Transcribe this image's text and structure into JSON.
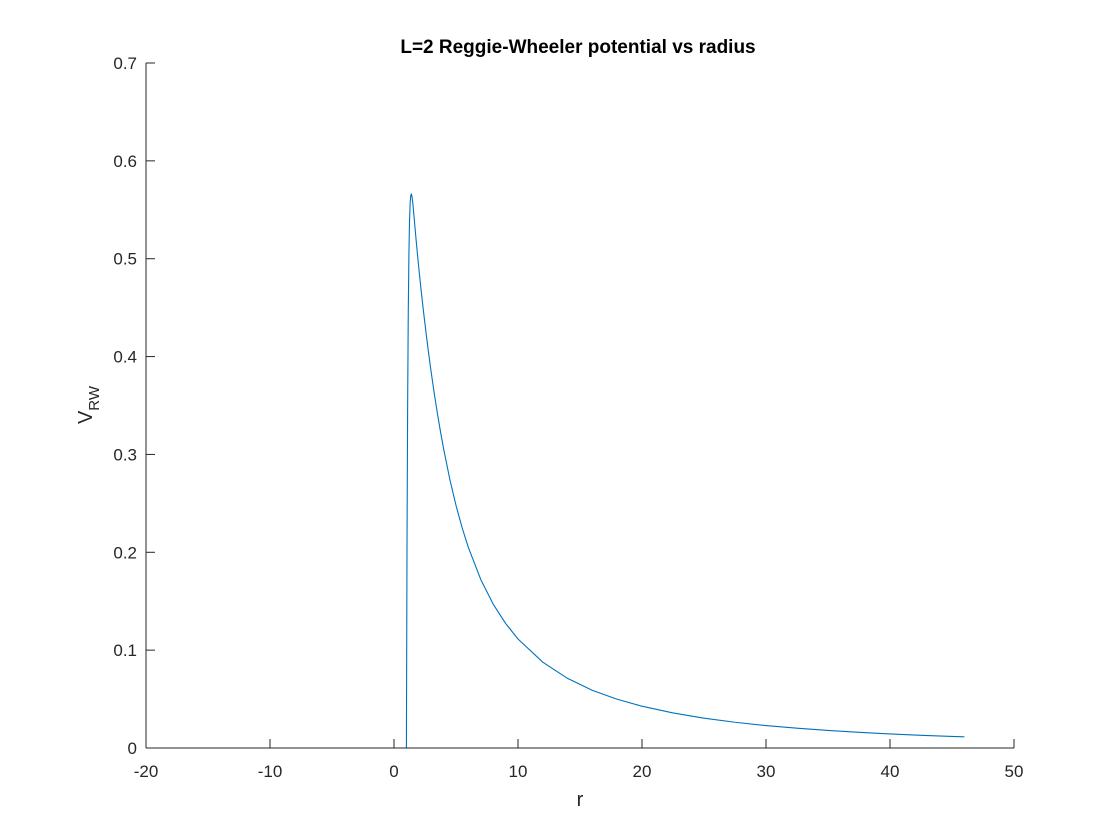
{
  "chart_data": {
    "type": "line",
    "title": "L=2 Reggie-Wheeler potential vs radius",
    "xlabel": "r",
    "ylabel_main": "V",
    "ylabel_sub": "RW",
    "xlim": [
      -20,
      50
    ],
    "ylim": [
      0,
      0.7
    ],
    "xticks": [
      -20,
      -10,
      0,
      10,
      20,
      30,
      40,
      50
    ],
    "xtick_labels": [
      "-20",
      "-10",
      "0",
      "10",
      "20",
      "30",
      "40",
      "50"
    ],
    "yticks": [
      0,
      0.1,
      0.2,
      0.3,
      0.4,
      0.5,
      0.6,
      0.7
    ],
    "ytick_labels": [
      "0",
      "0.1",
      "0.2",
      "0.3",
      "0.4",
      "0.5",
      "0.6",
      "0.7"
    ],
    "grid": false,
    "box": false,
    "series": [
      {
        "color": "#0072BD",
        "x": [
          1.0,
          1.05,
          1.1,
          1.15,
          1.2,
          1.25,
          1.3,
          1.35,
          1.4,
          1.45,
          1.5,
          1.55,
          1.6,
          1.65,
          1.7,
          1.75,
          1.8,
          1.9,
          2.0,
          2.1,
          2.2,
          2.3,
          2.4,
          2.6,
          2.8,
          3.0,
          3.25,
          3.5,
          3.75,
          4.0,
          4.5,
          5.0,
          5.5,
          6.0,
          7.0,
          8.0,
          9.0,
          10.0,
          12.0,
          14.0,
          16.0,
          18.0,
          20.0,
          22.5,
          25.0,
          27.5,
          30.0,
          32.5,
          35.0,
          37.5,
          40.0,
          42.5,
          45.0,
          46.0
        ],
        "y": [
          0.0,
          0.2097,
          0.3508,
          0.4438,
          0.5024,
          0.5373,
          0.5563,
          0.5646,
          0.5662,
          0.5636,
          0.5586,
          0.5523,
          0.5454,
          0.5382,
          0.531,
          0.5239,
          0.5169,
          0.5035,
          0.4906,
          0.4783,
          0.4664,
          0.4549,
          0.4438,
          0.4226,
          0.4027,
          0.3839,
          0.3621,
          0.3419,
          0.3232,
          0.3058,
          0.2747,
          0.2479,
          0.2248,
          0.2048,
          0.1721,
          0.147,
          0.1273,
          0.1114,
          0.0877,
          0.0711,
          0.0589,
          0.0498,
          0.0427,
          0.0358,
          0.0305,
          0.0263,
          0.0229,
          0.0202,
          0.0179,
          0.016,
          0.0144,
          0.013,
          0.0118,
          0.0114
        ]
      }
    ]
  }
}
